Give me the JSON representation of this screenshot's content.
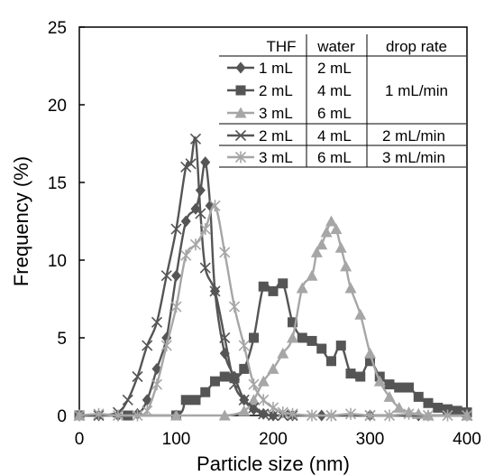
{
  "chart_data": {
    "type": "line",
    "title": "",
    "xlabel": "Particle size (nm)",
    "ylabel": "Frequency (%)",
    "xlim": [
      0,
      400
    ],
    "ylim": [
      0,
      25
    ],
    "x_ticks": [
      "0",
      "100",
      "200",
      "300",
      "400"
    ],
    "y_ticks": [
      "0",
      "5",
      "10",
      "15",
      "20",
      "25"
    ],
    "grid": false,
    "legend_placement": "top-right",
    "legend_table": {
      "headers": [
        "THF",
        "water",
        "drop rate"
      ],
      "rows": [
        {
          "thf": "1 mL",
          "water": "2 mL",
          "rate": "1 mL/min"
        },
        {
          "thf": "2 mL",
          "water": "4 mL",
          "rate": ""
        },
        {
          "thf": "3 mL",
          "water": "6 mL",
          "rate": ""
        },
        {
          "thf": "2 mL",
          "water": "4 mL",
          "rate": "2 mL/min"
        },
        {
          "thf": "3 mL",
          "water": "6 mL",
          "rate": "3 mL/min"
        }
      ]
    },
    "series": [
      {
        "marker": "diamond",
        "color": "#555555",
        "x": [
          0,
          20,
          40,
          60,
          70,
          80,
          90,
          100,
          110,
          120,
          125,
          130,
          135,
          140,
          150,
          160,
          170,
          180,
          190,
          200,
          220,
          250,
          300,
          350,
          400
        ],
        "y": [
          0,
          0,
          0,
          0.1,
          1,
          3,
          5,
          9,
          12.5,
          13.3,
          14.5,
          16.3,
          13.5,
          8,
          4,
          2.5,
          1,
          0.4,
          0.1,
          0,
          0,
          0,
          0,
          0,
          0
        ]
      },
      {
        "marker": "square",
        "color": "#555555",
        "x": [
          0,
          50,
          100,
          110,
          120,
          130,
          140,
          150,
          160,
          170,
          180,
          190,
          200,
          210,
          220,
          230,
          240,
          250,
          260,
          270,
          280,
          290,
          300,
          310,
          320,
          330,
          340,
          350,
          360,
          370,
          380,
          390,
          400
        ],
        "y": [
          0,
          0,
          0,
          1,
          1,
          1.5,
          2.2,
          2.5,
          2.4,
          3,
          5,
          8.3,
          8,
          8.5,
          6,
          5,
          4.8,
          4.3,
          3.5,
          4.5,
          2.7,
          2.5,
          3.5,
          2.5,
          2,
          1.8,
          1.8,
          1.2,
          0.8,
          0.5,
          0.4,
          0.3,
          0.2
        ]
      },
      {
        "marker": "triangle",
        "color": "#a6a6a6",
        "x": [
          0,
          100,
          150,
          170,
          180,
          190,
          200,
          210,
          220,
          230,
          240,
          245,
          250,
          255,
          260,
          265,
          270,
          275,
          280,
          290,
          300,
          310,
          320,
          330,
          340,
          350,
          360,
          400
        ],
        "y": [
          0,
          0,
          0,
          0.3,
          1,
          2.2,
          3,
          4,
          5,
          8.2,
          9,
          10.5,
          11,
          11.8,
          12.5,
          12,
          10.8,
          9.6,
          8.2,
          6.5,
          4,
          2.2,
          1.2,
          0.5,
          0.2,
          0.1,
          0,
          0
        ]
      },
      {
        "marker": "x",
        "color": "#555555",
        "x": [
          0,
          20,
          40,
          50,
          60,
          70,
          80,
          90,
          100,
          110,
          115,
          120,
          125,
          130,
          140,
          150,
          160,
          170,
          180,
          190,
          200,
          210,
          220,
          260,
          300,
          400
        ],
        "y": [
          0,
          0,
          0.2,
          1,
          2.5,
          4.5,
          6,
          9,
          12,
          16,
          16.2,
          17.8,
          13,
          9.5,
          8,
          5,
          2,
          1,
          0.5,
          0.1,
          0,
          0,
          0,
          0,
          0,
          0
        ]
      },
      {
        "marker": "star",
        "color": "#a6a6a6",
        "x": [
          0,
          20,
          40,
          60,
          70,
          80,
          90,
          100,
          110,
          120,
          130,
          140,
          150,
          160,
          170,
          180,
          190,
          200,
          210,
          220,
          240,
          260,
          280,
          300,
          320,
          340,
          360,
          380,
          400
        ],
        "y": [
          0,
          0.1,
          0,
          0,
          0.3,
          2,
          4.5,
          7,
          10.3,
          11,
          12,
          13.5,
          10.5,
          7,
          4.5,
          2,
          1,
          0.5,
          0.2,
          0.1,
          0,
          0,
          0.1,
          0,
          0,
          0.1,
          0,
          0,
          0
        ]
      }
    ]
  }
}
